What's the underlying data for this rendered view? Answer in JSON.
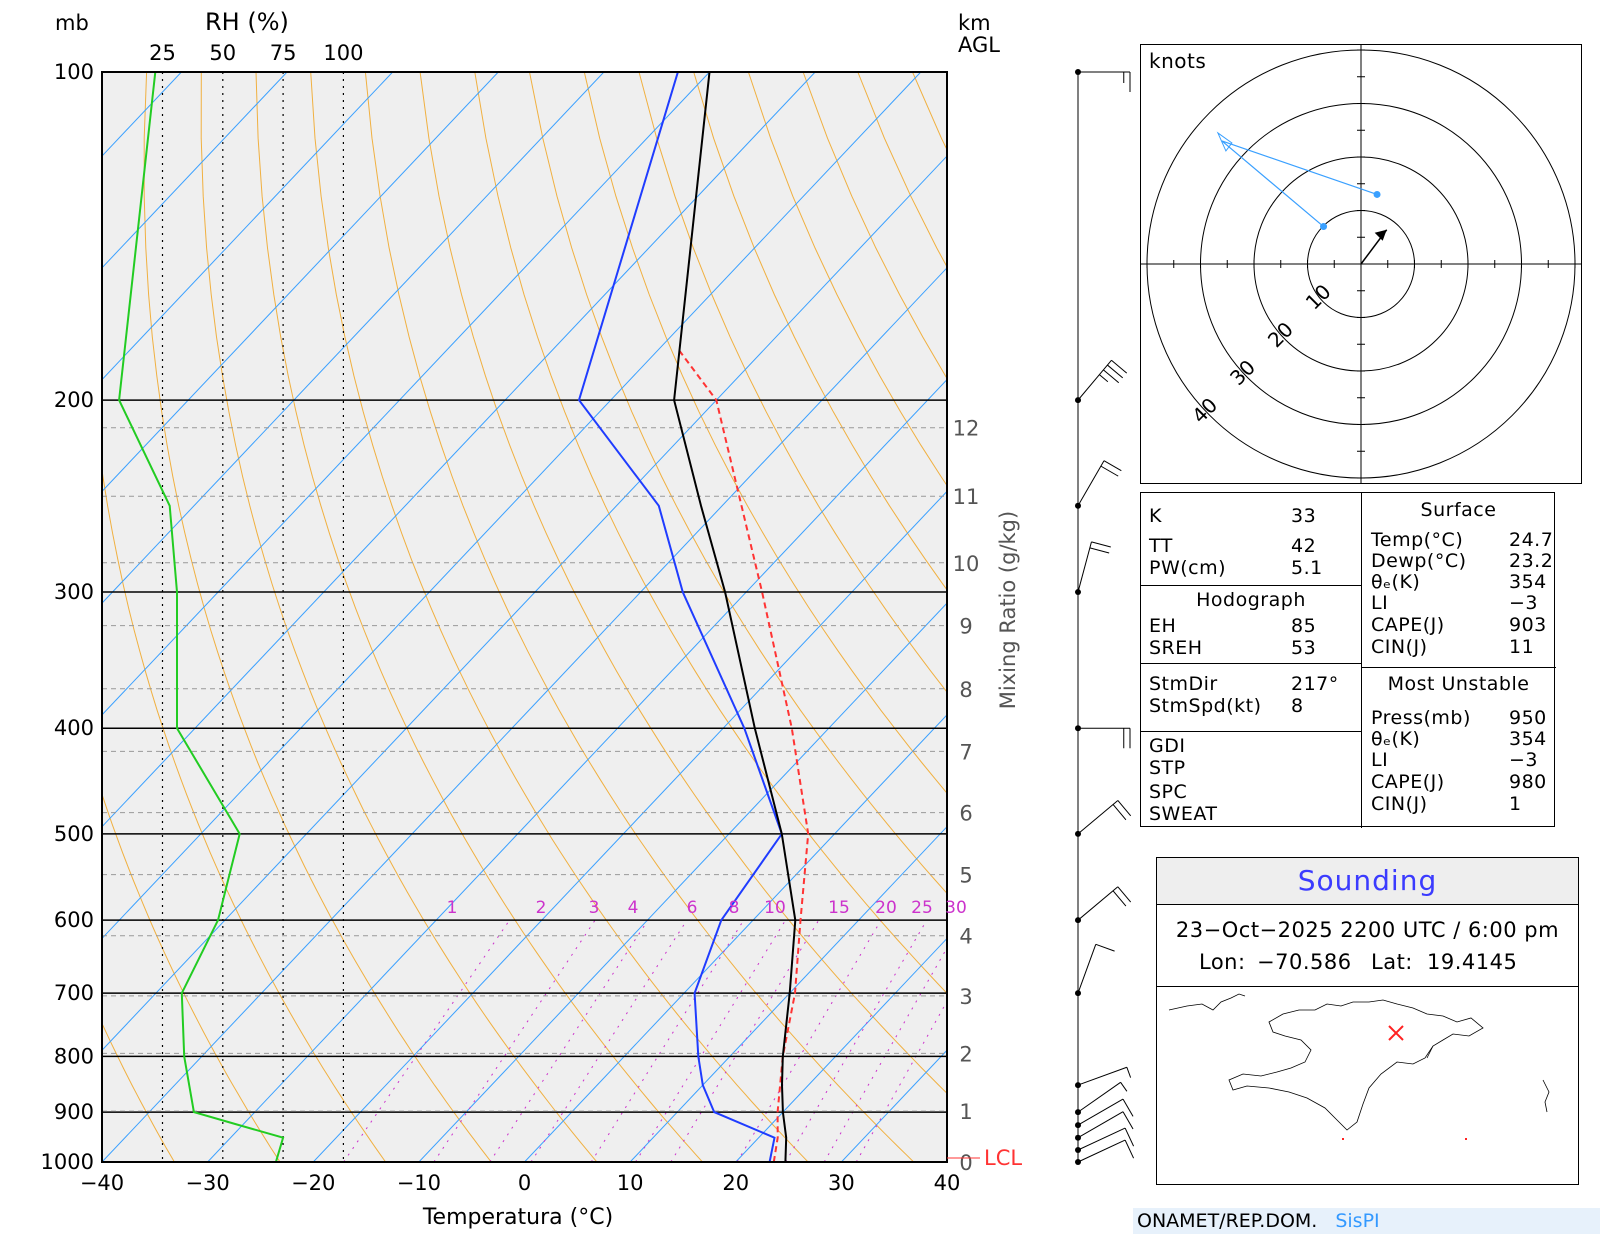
{
  "colors": {
    "temperature": "#000000",
    "dewpoint": "#1f3cff",
    "rh": "#22cc22",
    "parcel": "#ff3333",
    "isotherm": "#3aa0ff",
    "dry_adiabat": "#f0b040",
    "mixing_ratio": "#cc33cc",
    "plot_bg": "#efefef"
  },
  "chart_data": {
    "type": "line",
    "subtype": "skew-t log-p",
    "xlabel": "Temperatura (°C)",
    "ylabel_left": "mb",
    "rh_label": "RH (%)",
    "km_label": "km\nAGL",
    "mixing_ratio_label": "Mixing Ratio (g/kg)",
    "lcl_label": "LCL",
    "xlim": [
      -40,
      40
    ],
    "plim": [
      1000,
      100
    ],
    "x_ticks": [
      "−40",
      "−30",
      "−20",
      "−10",
      "0",
      "10",
      "20",
      "30",
      "40"
    ],
    "p_ticks": [
      "100",
      "200",
      "300",
      "400",
      "500",
      "600",
      "700",
      "800",
      "900",
      "1000"
    ],
    "rh_ticks": [
      "25",
      "50",
      "75",
      "100"
    ],
    "mixing_ratio_ticks": [
      "1",
      "2",
      "3",
      "4",
      "6",
      "8",
      "10",
      "15",
      "20",
      "25",
      "30"
    ],
    "km_ticks": [
      "0",
      "1",
      "2",
      "3",
      "4",
      "5",
      "6",
      "7",
      "8",
      "9",
      "10",
      "11",
      "12"
    ],
    "series": [
      {
        "name": "Temperature",
        "pressure": [
          1000,
          950,
          900,
          850,
          800,
          700,
          600,
          500,
          400,
          300,
          250,
          200,
          100
        ],
        "temperature": [
          24.7,
          22.6,
          20.0,
          17.5,
          15.0,
          10.0,
          4.0,
          -5.0,
          -17.0,
          -32.0,
          -42.0,
          -54.0,
          -80.0
        ]
      },
      {
        "name": "Dewpoint",
        "pressure": [
          1000,
          950,
          900,
          850,
          800,
          700,
          600,
          500,
          400,
          300,
          250,
          200,
          100
        ],
        "dewpoint": [
          23.2,
          21.5,
          13.5,
          10.0,
          7.0,
          1.0,
          -3.0,
          -5.0,
          -18.0,
          -36.0,
          -46.0,
          -63.0,
          -83.0
        ]
      },
      {
        "name": "RH",
        "pressure": [
          1000,
          950,
          920,
          900,
          800,
          700,
          600,
          500,
          400,
          300,
          250,
          200,
          100
        ],
        "rh": [
          72,
          75,
          53,
          38,
          34,
          33,
          48,
          57,
          31,
          31,
          28,
          7,
          22
        ]
      },
      {
        "name": "Parcel",
        "pressure": [
          1000,
          950,
          900,
          800,
          700,
          600,
          500,
          400,
          300,
          200,
          180
        ],
        "temperature": [
          23.6,
          21.8,
          19.5,
          15.0,
          10.5,
          4.5,
          -2.5,
          -13.5,
          -28.5,
          -50.0,
          -58.0
        ]
      }
    ],
    "wind_levels_mb": [
      1000,
      975,
      950,
      925,
      900,
      850,
      700,
      600,
      500,
      400,
      300,
      250,
      200,
      100
    ]
  },
  "hodograph": {
    "units_label": "knots",
    "ring_labels": [
      "10",
      "20",
      "30",
      "40"
    ],
    "points_kt": [
      [
        -7,
        7
      ],
      [
        -26,
        23
      ],
      [
        3,
        13
      ]
    ],
    "storm_vector_kt": [
      4.8,
      6.4
    ]
  },
  "indices": {
    "basic": [
      {
        "label": "K",
        "value": "33"
      },
      {
        "label": "TT",
        "value": "42"
      },
      {
        "label": "PW(cm)",
        "value": "5.1"
      }
    ],
    "hodograph_title": "Hodograph",
    "hodograph": [
      {
        "label": "EH",
        "value": "85"
      },
      {
        "label": "SREH",
        "value": "53"
      }
    ],
    "storm": [
      {
        "label": "StmDir",
        "value": "217°"
      },
      {
        "label": "StmSpd(kt)",
        "value": "8"
      }
    ],
    "other": [
      {
        "label": "GDI",
        "value": ""
      },
      {
        "label": "STP",
        "value": ""
      },
      {
        "label": "SPC",
        "value": ""
      },
      {
        "label": "SWEAT",
        "value": ""
      }
    ],
    "surface_title": "Surface",
    "surface": [
      {
        "label": "Temp(°C)",
        "value": "24.7"
      },
      {
        "label": "Dewp(°C)",
        "value": "23.2"
      },
      {
        "label": "θₑ(K)",
        "value": "354"
      },
      {
        "label": "LI",
        "value": "−3"
      },
      {
        "label": "CAPE(J)",
        "value": "903"
      },
      {
        "label": "CIN(J)",
        "value": "11"
      }
    ],
    "mu_title": "Most Unstable",
    "mu": [
      {
        "label": "Press(mb)",
        "value": "950"
      },
      {
        "label": "θₑ(K)",
        "value": "354"
      },
      {
        "label": "LI",
        "value": "−3"
      },
      {
        "label": "CAPE(J)",
        "value": "980"
      },
      {
        "label": "CIN(J)",
        "value": "1"
      }
    ]
  },
  "sounding": {
    "title": "Sounding",
    "datetime": "23−Oct−2025 2200 UTC / 6:00 pm",
    "lon_label": "Lon:",
    "lon": "−70.586",
    "lat_label": "Lat:",
    "lat": "19.4145",
    "marker": "×"
  },
  "footer": {
    "org": "ONAMET/REP.DOM.",
    "brand": "SisPI"
  }
}
